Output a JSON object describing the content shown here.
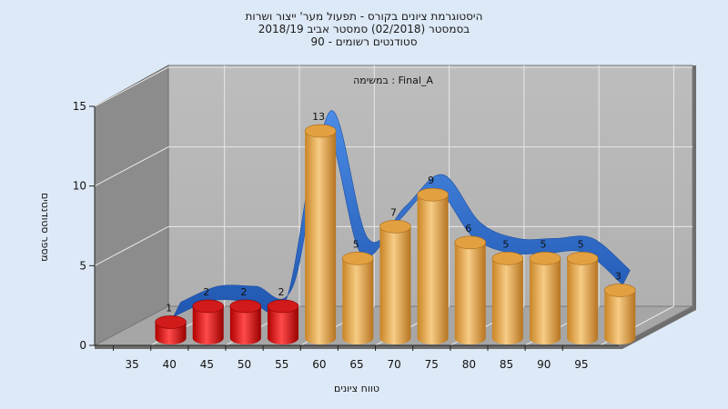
{
  "chart_data": {
    "type": "bar",
    "title_lines": [
      "היסטוגרמת ציונים בקורס - תפעול מער' ייצור ושרות",
      "בסמסטר  (02/2018)  סמסטר אביב 2018/19",
      "סטודנטים רשומים - 90"
    ],
    "list_label": "במשימה : Final_A",
    "xlabel": "טווח ציונים",
    "ylabel": "מספר סטודנטים",
    "categories": [
      "35",
      "40",
      "45",
      "50",
      "55",
      "60",
      "65",
      "70",
      "75",
      "80",
      "85",
      "90",
      "95"
    ],
    "bar_labels": [
      "35",
      "40",
      "45",
      "50",
      "55",
      "60",
      "65",
      "70",
      "75",
      "80",
      "85",
      "90",
      "95"
    ],
    "values": [
      1,
      2,
      2,
      2,
      13,
      5,
      7,
      9,
      6,
      5,
      5,
      5,
      3
    ],
    "ylim": [
      0,
      15
    ],
    "yticks": [
      0,
      5,
      10,
      15
    ],
    "grid": true,
    "colors": {
      "fail": "#e01010",
      "pass": "#e8a94a",
      "curve": "#2f6fcf",
      "back_wall": "#b8b8b8",
      "side_wall": "#8c8c8c",
      "floor": "#a6a6a6",
      "background": "#dde9f6"
    },
    "fail_threshold": 55
  }
}
